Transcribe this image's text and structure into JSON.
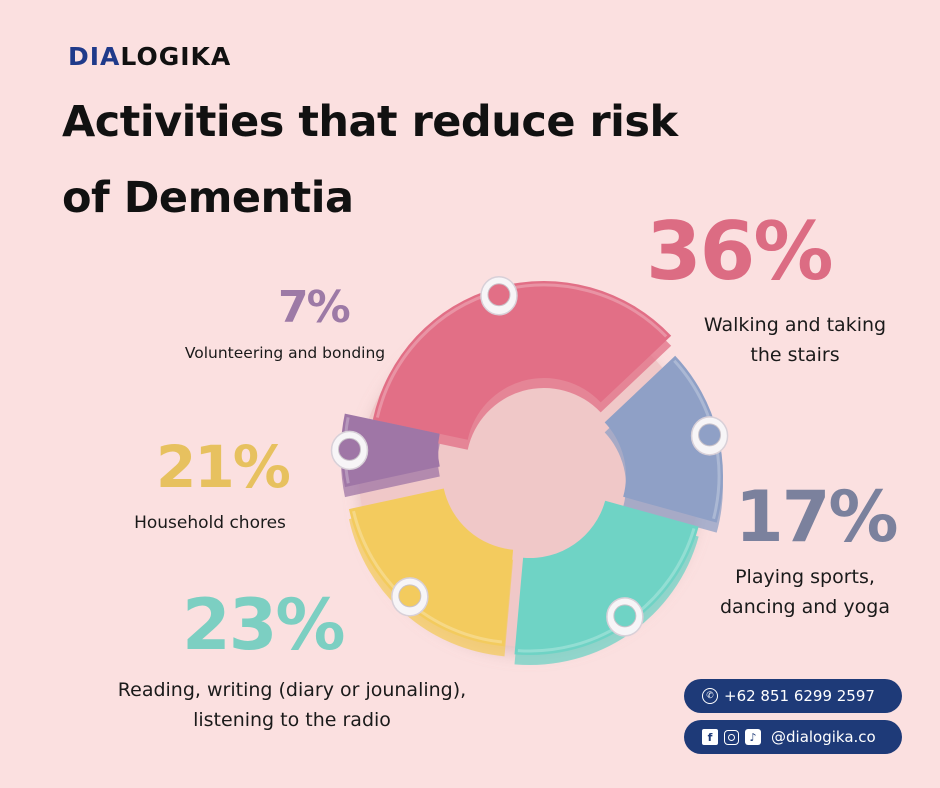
{
  "brand": {
    "logo_part1": "DIA",
    "logo_part2": "LOGIKA"
  },
  "chart_data": {
    "type": "pie",
    "title": "Activities that reduce risk of Dementia",
    "categories": [
      "Walking and taking the stairs",
      "Playing sports, dancing and yoga",
      "Reading, writing (diary or jounaling), listening to the radio",
      "Household chores",
      "Volunteering and bonding"
    ],
    "values": [
      36,
      17,
      23,
      21,
      7
    ],
    "value_labels": [
      "36%",
      "17%",
      "23%",
      "21%",
      "7%"
    ],
    "label_lines": [
      [
        "Walking and taking",
        "the stairs"
      ],
      [
        "Playing sports,",
        "dancing and yoga"
      ],
      [
        "Reading, writing (diary or jounaling),",
        "listening to the radio"
      ],
      [
        "Household chores"
      ],
      [
        "Volunteering and bonding"
      ]
    ],
    "colors": [
      "#e26f86",
      "#8fa0c6",
      "#6fd3c5",
      "#f3cb5e",
      "#9f76a6"
    ],
    "label_colors": [
      "#dc6c83",
      "#7b819d",
      "#7ccfc2",
      "#e7c15f",
      "#9d7aa6"
    ]
  },
  "contact": {
    "phone": "+62 851 6299 2597",
    "social": "@dialogika.co",
    "icons": [
      "phone-icon",
      "facebook-icon",
      "instagram-icon",
      "tiktok-icon"
    ]
  }
}
